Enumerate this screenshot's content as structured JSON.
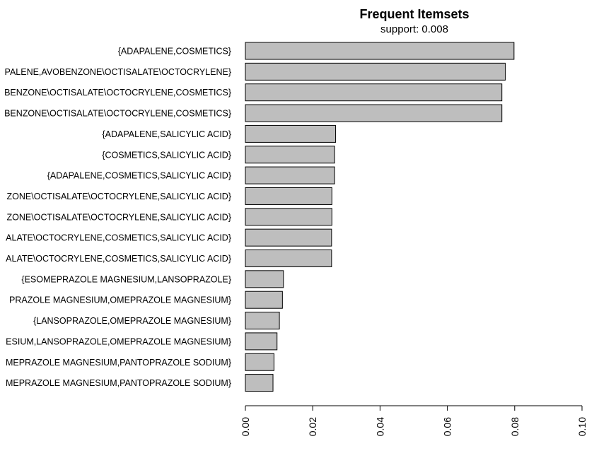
{
  "chart_data": {
    "type": "bar",
    "orientation": "horizontal",
    "title": "Frequent Itemsets",
    "subtitle": "support: 0.008",
    "xlabel": "",
    "ylabel": "",
    "xlim": [
      0,
      0.1
    ],
    "x_ticks": [
      0.0,
      0.02,
      0.04,
      0.06,
      0.08,
      0.1
    ],
    "x_tick_labels": [
      "0.00",
      "0.02",
      "0.04",
      "0.06",
      "0.08",
      "0.10"
    ],
    "grid": false,
    "bar_color": "#bebebe",
    "categories": [
      "{ADAPALENE,COSMETICS}",
      "PALENE,AVOBENZONE\\OCTISALATE\\OCTOCRYLENE}",
      "BENZONE\\OCTISALATE\\OCTOCRYLENE,COSMETICS}",
      "BENZONE\\OCTISALATE\\OCTOCRYLENE,COSMETICS}",
      "{ADAPALENE,SALICYLIC ACID}",
      "{COSMETICS,SALICYLIC ACID}",
      "{ADAPALENE,COSMETICS,SALICYLIC ACID}",
      "ZONE\\OCTISALATE\\OCTOCRYLENE,SALICYLIC ACID}",
      "ZONE\\OCTISALATE\\OCTOCRYLENE,SALICYLIC ACID}",
      "ALATE\\OCTOCRYLENE,COSMETICS,SALICYLIC ACID}",
      "ALATE\\OCTOCRYLENE,COSMETICS,SALICYLIC ACID}",
      "{ESOMEPRAZOLE MAGNESIUM,LANSOPRAZOLE}",
      "PRAZOLE MAGNESIUM,OMEPRAZOLE MAGNESIUM}",
      "{LANSOPRAZOLE,OMEPRAZOLE MAGNESIUM}",
      "ESIUM,LANSOPRAZOLE,OMEPRAZOLE MAGNESIUM}",
      "MEPRAZOLE MAGNESIUM,PANTOPRAZOLE SODIUM}",
      "MEPRAZOLE MAGNESIUM,PANTOPRAZOLE SODIUM}"
    ],
    "values": [
      0.0798,
      0.0772,
      0.0762,
      0.0762,
      0.0268,
      0.0265,
      0.0265,
      0.0257,
      0.0257,
      0.0256,
      0.0256,
      0.0113,
      0.011,
      0.0101,
      0.0094,
      0.0085,
      0.0082
    ]
  }
}
